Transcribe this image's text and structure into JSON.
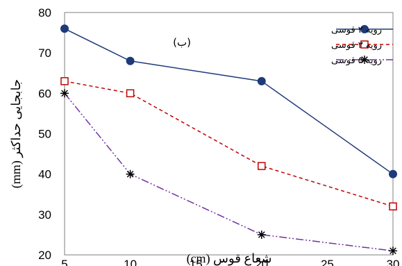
{
  "chart_data": {
    "type": "line",
    "title": "",
    "annotation": "(ب)",
    "xlabel": "شعاع قوس (cm)",
    "ylabel": "جابجایی حداکثر (mm)",
    "xlim": [
      5,
      30
    ],
    "ylim": [
      20,
      80
    ],
    "xticks": [
      5,
      10,
      15,
      20,
      25,
      30
    ],
    "yticks": [
      20,
      30,
      40,
      50,
      60,
      70,
      80
    ],
    "grid": false,
    "legend_position": "top-right",
    "series": [
      {
        "name": "رویه ۲ قوسی",
        "color": "#1f3a7a",
        "line_style": "solid",
        "marker": "circle",
        "x": [
          5,
          10,
          20,
          30
        ],
        "y": [
          76,
          68,
          63,
          40
        ]
      },
      {
        "name": "رویه ۳ قوسی",
        "color": "#c00000",
        "line_style": "dashed",
        "marker": "square",
        "x": [
          5,
          10,
          20,
          30
        ],
        "y": [
          63,
          60,
          42,
          32
        ]
      },
      {
        "name": "رویه ۵ قوسی",
        "color": "#7030a0",
        "line_style": "dash-dot-dot",
        "marker": "asterisk",
        "x": [
          5,
          10,
          20,
          30
        ],
        "y": [
          60,
          40,
          25,
          21
        ]
      }
    ]
  }
}
